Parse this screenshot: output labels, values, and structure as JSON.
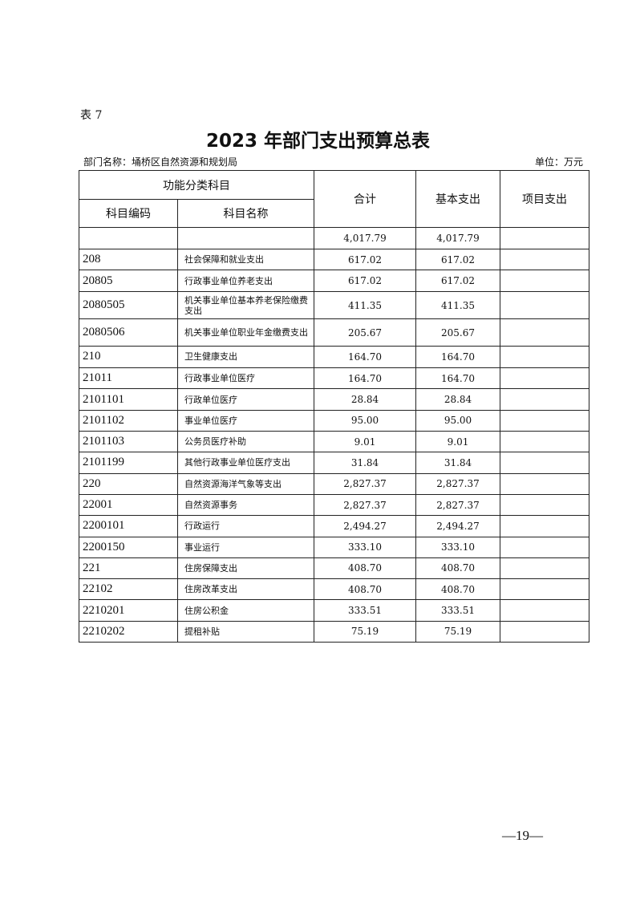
{
  "table_no": "表 7",
  "title": "2023 年部门支出预算总表",
  "department": "部门名称：埇桥区自然资源和规划局",
  "unit": "单位：万元",
  "headers": {
    "group": "功能分类科目",
    "code": "科目编码",
    "name": "科目名称",
    "total": "合计",
    "basic": "基本支出",
    "project": "项目支出"
  },
  "rows": [
    {
      "code": "",
      "name": "",
      "total": "4,017.79",
      "basic": "4,017.79",
      "project": ""
    },
    {
      "code": "208",
      "name": "社会保障和就业支出",
      "total": "617.02",
      "basic": "617.02",
      "project": ""
    },
    {
      "code": "20805",
      "name": "行政事业单位养老支出",
      "total": "617.02",
      "basic": "617.02",
      "project": ""
    },
    {
      "code": "2080505",
      "name": "机关事业单位基本养老保险缴费支出",
      "total": "411.35",
      "basic": "411.35",
      "project": ""
    },
    {
      "code": "2080506",
      "name": "机关事业单位职业年金缴费支出",
      "total": "205.67",
      "basic": "205.67",
      "project": ""
    },
    {
      "code": "210",
      "name": "卫生健康支出",
      "total": "164.70",
      "basic": "164.70",
      "project": ""
    },
    {
      "code": "21011",
      "name": "行政事业单位医疗",
      "total": "164.70",
      "basic": "164.70",
      "project": ""
    },
    {
      "code": "2101101",
      "name": "行政单位医疗",
      "total": "28.84",
      "basic": "28.84",
      "project": ""
    },
    {
      "code": "2101102",
      "name": "事业单位医疗",
      "total": "95.00",
      "basic": "95.00",
      "project": ""
    },
    {
      "code": "2101103",
      "name": "公务员医疗补助",
      "total": "9.01",
      "basic": "9.01",
      "project": ""
    },
    {
      "code": "2101199",
      "name": "其他行政事业单位医疗支出",
      "total": "31.84",
      "basic": "31.84",
      "project": ""
    },
    {
      "code": "220",
      "name": "自然资源海洋气象等支出",
      "total": "2,827.37",
      "basic": "2,827.37",
      "project": ""
    },
    {
      "code": "22001",
      "name": "自然资源事务",
      "total": "2,827.37",
      "basic": "2,827.37",
      "project": ""
    },
    {
      "code": "2200101",
      "name": "行政运行",
      "total": "2,494.27",
      "basic": "2,494.27",
      "project": ""
    },
    {
      "code": "2200150",
      "name": "事业运行",
      "total": "333.10",
      "basic": "333.10",
      "project": ""
    },
    {
      "code": "221",
      "name": "住房保障支出",
      "total": "408.70",
      "basic": "408.70",
      "project": ""
    },
    {
      "code": "22102",
      "name": "住房改革支出",
      "total": "408.70",
      "basic": "408.70",
      "project": ""
    },
    {
      "code": "2210201",
      "name": "住房公积金",
      "total": "333.51",
      "basic": "333.51",
      "project": ""
    },
    {
      "code": "2210202",
      "name": "提租补贴",
      "total": "75.19",
      "basic": "75.19",
      "project": ""
    }
  ],
  "page_number": "—19—"
}
